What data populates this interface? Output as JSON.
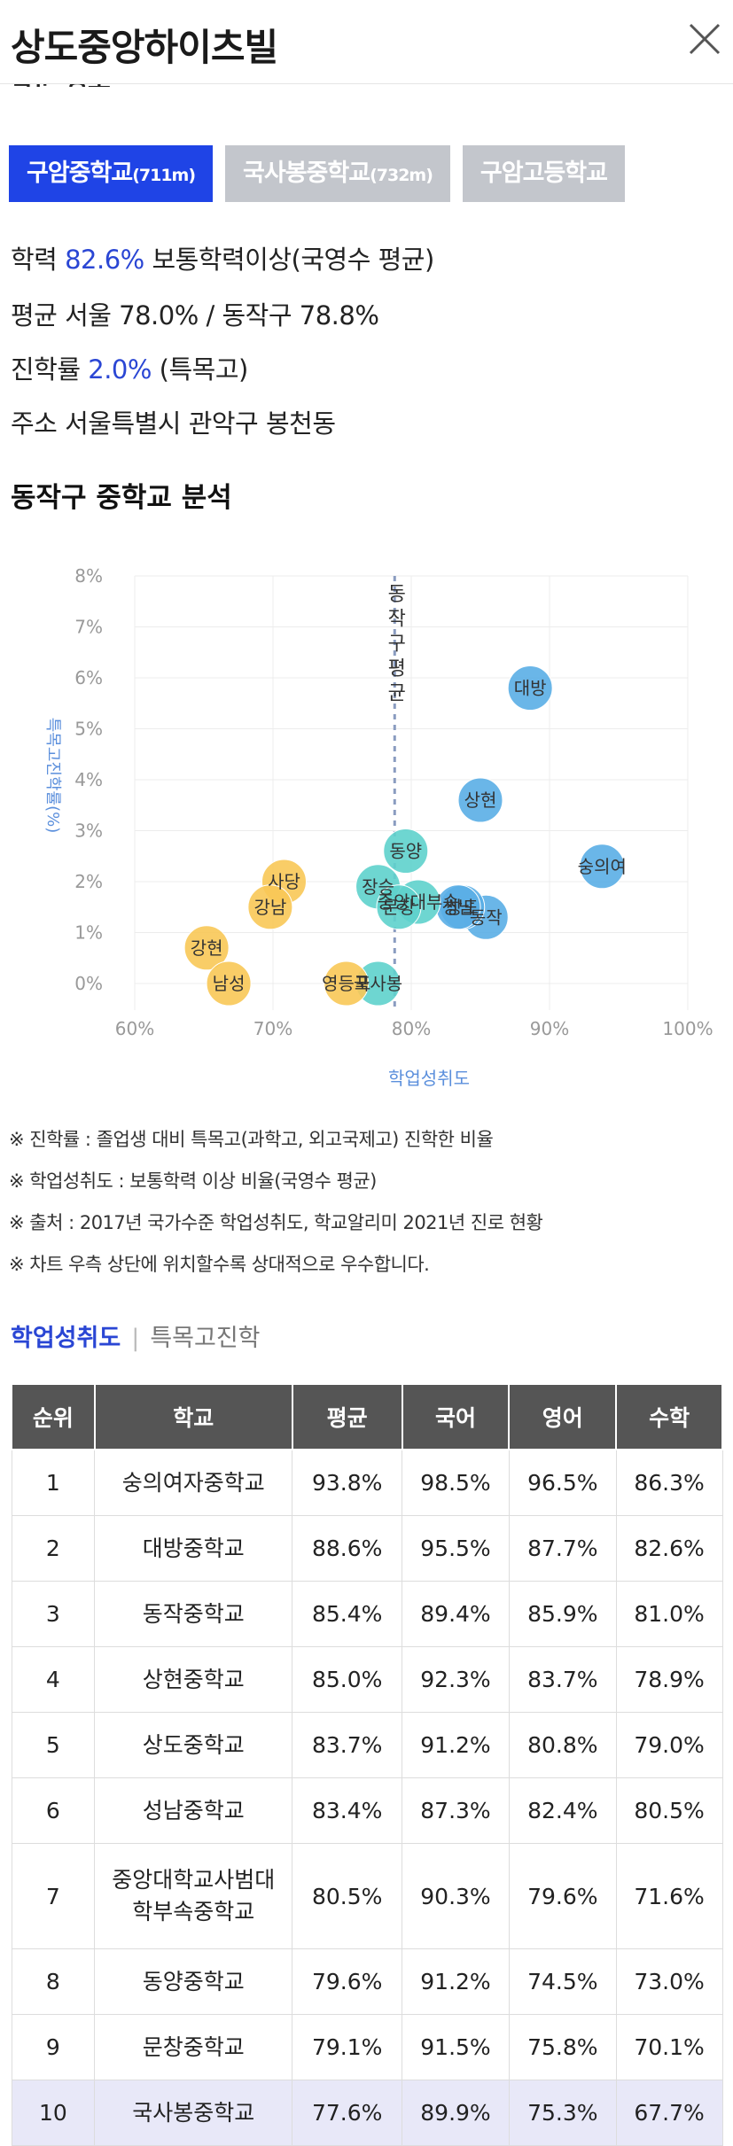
{
  "header": {
    "title": "상도중앙하이츠빌"
  },
  "section_cut": "학군 정보",
  "school_tabs": [
    {
      "name": "구암중학교",
      "dist": "(711m)"
    },
    {
      "name": "국사봉중학교",
      "dist": "(732m)"
    },
    {
      "name": "구암고등학교",
      "dist": ""
    }
  ],
  "info": {
    "l1_a": "학력 ",
    "l1_val": "82.6%",
    "l1_b": " 보통학력이상(국영수 평균)",
    "l2": "평균 서울 78.0% / 동작구 78.8%",
    "l3_a": "진학률 ",
    "l3_val": "2.0%",
    "l3_b": " (특목고)",
    "l4": "주소 서울특별시 관악구 봉천동"
  },
  "section_title": "동작구 중학교 분석",
  "chart_data": {
    "type": "scatter",
    "xlabel": "학업성취도",
    "ylabel": "특목고진학률(%)",
    "xlim": [
      60,
      100
    ],
    "ylim": [
      0,
      8
    ],
    "xticks": [
      "60%",
      "70%",
      "80%",
      "90%",
      "100%"
    ],
    "yticks": [
      "0%",
      "1%",
      "2%",
      "3%",
      "4%",
      "5%",
      "6%",
      "7%",
      "8%"
    ],
    "reference_line": {
      "x": 78.8,
      "label": "동작구평균"
    },
    "points": [
      {
        "name": "대방",
        "x": 88.6,
        "y": 5.8,
        "group": "blue"
      },
      {
        "name": "상현",
        "x": 85.0,
        "y": 3.6,
        "group": "blue"
      },
      {
        "name": "숭의여",
        "x": 93.8,
        "y": 2.3,
        "group": "blue"
      },
      {
        "name": "동작",
        "x": 85.4,
        "y": 1.3,
        "group": "blue"
      },
      {
        "name": "상도",
        "x": 83.7,
        "y": 1.5,
        "group": "blue"
      },
      {
        "name": "성남",
        "x": 83.4,
        "y": 1.5,
        "group": "blue"
      },
      {
        "name": "동양",
        "x": 79.6,
        "y": 2.6,
        "group": "teal"
      },
      {
        "name": "장승",
        "x": 77.6,
        "y": 1.9,
        "group": "teal"
      },
      {
        "name": "중앙대부속",
        "x": 80.5,
        "y": 1.6,
        "group": "teal"
      },
      {
        "name": "문창",
        "x": 79.1,
        "y": 1.5,
        "group": "teal"
      },
      {
        "name": "국사봉",
        "x": 77.6,
        "y": 0.0,
        "group": "teal"
      },
      {
        "name": "사당",
        "x": 70.8,
        "y": 2.0,
        "group": "yellow"
      },
      {
        "name": "강남",
        "x": 69.8,
        "y": 1.5,
        "group": "yellow"
      },
      {
        "name": "강현",
        "x": 65.2,
        "y": 0.7,
        "group": "yellow"
      },
      {
        "name": "남성",
        "x": 66.8,
        "y": 0.0,
        "group": "yellow"
      },
      {
        "name": "영등포",
        "x": 75.3,
        "y": 0.0,
        "group": "yellow"
      }
    ],
    "colors": {
      "blue": "#5aaee6",
      "teal": "#5ed2cc",
      "yellow": "#f8c856"
    }
  },
  "notes": [
    "※ 진학률 : 졸업생 대비 특목고(과학고, 외고국제고) 진학한 비율",
    "※ 학업성취도 : 보통학력 이상 비율(국영수 평균)",
    "※ 출처 : 2017년 국가수준 학업성취도, 학교알리미 2021년 진로 현황",
    "※ 차트 우측 상단에 위치할수록 상대적으로 우수합니다."
  ],
  "toggle": {
    "active": "학업성취도",
    "inactive": "특목고진학"
  },
  "table": {
    "headers": [
      "순위",
      "학교",
      "평균",
      "국어",
      "영어",
      "수학"
    ],
    "rows": [
      [
        "1",
        "숭의여자중학교",
        "93.8%",
        "98.5%",
        "96.5%",
        "86.3%"
      ],
      [
        "2",
        "대방중학교",
        "88.6%",
        "95.5%",
        "87.7%",
        "82.6%"
      ],
      [
        "3",
        "동작중학교",
        "85.4%",
        "89.4%",
        "85.9%",
        "81.0%"
      ],
      [
        "4",
        "상현중학교",
        "85.0%",
        "92.3%",
        "83.7%",
        "78.9%"
      ],
      [
        "5",
        "상도중학교",
        "83.7%",
        "91.2%",
        "80.8%",
        "79.0%"
      ],
      [
        "6",
        "성남중학교",
        "83.4%",
        "87.3%",
        "82.4%",
        "80.5%"
      ],
      [
        "7",
        "중앙대학교사범대학부속중학교",
        "80.5%",
        "90.3%",
        "79.6%",
        "71.6%"
      ],
      [
        "8",
        "동양중학교",
        "79.6%",
        "91.2%",
        "74.5%",
        "73.0%"
      ],
      [
        "9",
        "문창중학교",
        "79.1%",
        "91.5%",
        "75.8%",
        "70.1%"
      ],
      [
        "10",
        "국사봉중학교",
        "77.6%",
        "89.9%",
        "75.3%",
        "67.7%"
      ]
    ]
  }
}
